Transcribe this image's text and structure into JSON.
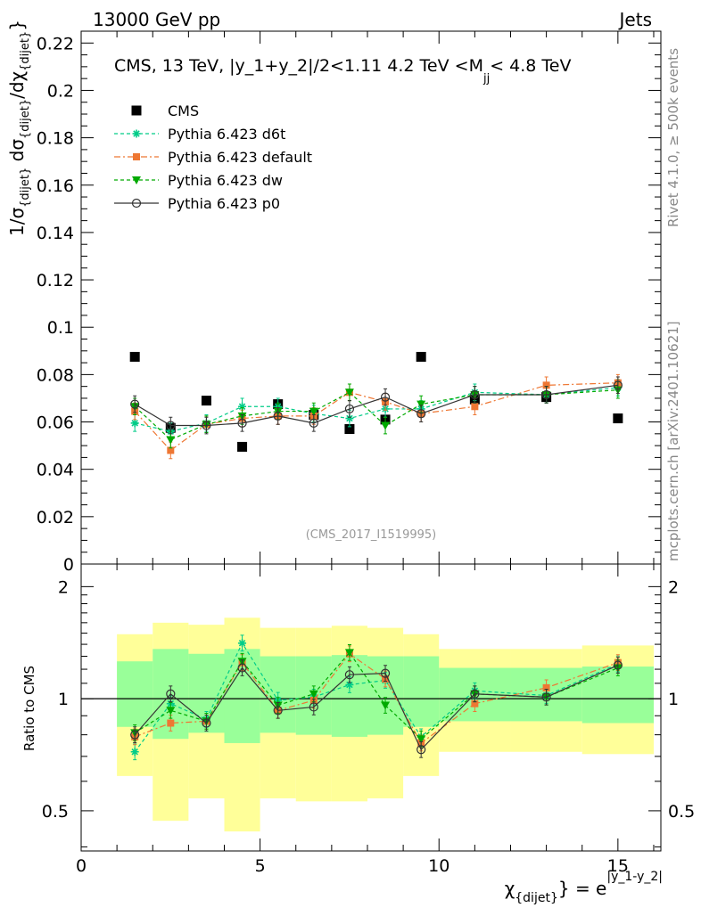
{
  "header": {
    "left": "13000 GeV pp",
    "right": "Jets"
  },
  "side_labels": {
    "rivet": "Rivet 4.1.0, ≥ 500k events",
    "mcplots": "mcplots.cern.ch [arXiv:2401.10621]"
  },
  "chart_data": [
    {
      "type": "scatter",
      "title": "CMS, 13 TeV, |y_1+y_2|/2<1.11 4.2 TeV <M",
      "title_sub": "jj",
      "title_tail": "< 4.8 TeV",
      "watermark": "(CMS_2017_I1519995)",
      "ylabel": "1/σ",
      "ylabel_parts": [
        "1/σ",
        "{dijet}",
        " dσ",
        "{dijet}",
        "/dχ",
        "{dijet}"
      ],
      "xlim": [
        0,
        16.2
      ],
      "ylim": [
        0,
        0.225
      ],
      "yticks": [
        "0",
        "0.02",
        "0.04",
        "0.06",
        "0.08",
        "0.1",
        "0.12",
        "0.14",
        "0.16",
        "0.18",
        "0.2",
        "0.22"
      ],
      "ytick_values": [
        0,
        0.02,
        0.04,
        0.06,
        0.08,
        0.1,
        0.12,
        0.14,
        0.16,
        0.18,
        0.2,
        0.22
      ],
      "x": [
        1.5,
        2.5,
        3.5,
        4.5,
        5.5,
        6.5,
        7.5,
        8.5,
        9.5,
        11.0,
        13.0,
        15.0
      ],
      "series": [
        {
          "name": "CMS",
          "color": "#000000",
          "marker": "square",
          "line": "none",
          "values": [
            0.0875,
            0.0575,
            0.069,
            0.0495,
            0.0675,
            0.063,
            0.057,
            0.061,
            0.0875,
            0.0695,
            0.0705,
            0.0615
          ]
        },
        {
          "name": "Pythia 6.423 d6t",
          "color": "#00cc88",
          "marker": "star",
          "line": "dashed",
          "values": [
            0.0595,
            0.056,
            0.0595,
            0.0665,
            0.0665,
            0.0635,
            0.0615,
            0.0655,
            0.0655,
            0.0725,
            0.0715,
            0.0745
          ]
        },
        {
          "name": "Pythia 6.423 default",
          "color": "#ee7733",
          "marker": "square-small",
          "line": "dashdot",
          "values": [
            0.0645,
            0.048,
            0.059,
            0.0615,
            0.0625,
            0.0625,
            0.0725,
            0.0685,
            0.0635,
            0.0665,
            0.0755,
            0.0765
          ]
        },
        {
          "name": "Pythia 6.423 dw",
          "color": "#00aa00",
          "marker": "triangle-down",
          "line": "dashed",
          "values": [
            0.0665,
            0.0525,
            0.059,
            0.0625,
            0.0645,
            0.0645,
            0.0725,
            0.0585,
            0.0675,
            0.0715,
            0.0715,
            0.0735
          ]
        },
        {
          "name": "Pythia 6.423 p0",
          "color": "#333333",
          "marker": "circle-open",
          "line": "solid",
          "values": [
            0.0675,
            0.0585,
            0.0585,
            0.0595,
            0.0625,
            0.0595,
            0.0655,
            0.0705,
            0.0635,
            0.0715,
            0.0715,
            0.0755
          ]
        }
      ],
      "legend_position": "top-left"
    },
    {
      "type": "scatter",
      "ylabel": "Ratio to CMS",
      "xlabel": "χ",
      "xlabel_sub": "{dijet}",
      "xlabel_tail": "} = e",
      "xlabel_sup": "|y_1-y_2|",
      "xlim": [
        0,
        16.2
      ],
      "ylim": [
        0.39,
        2.3
      ],
      "yscale": "log",
      "xticks": [
        "0",
        "5",
        "10",
        "15"
      ],
      "xtick_values": [
        0,
        5,
        10,
        15
      ],
      "yticks": [
        "0.5",
        "1",
        "2"
      ],
      "ytick_values": [
        0.5,
        1,
        2
      ],
      "x": [
        1.5,
        2.5,
        3.5,
        4.5,
        5.5,
        6.5,
        7.5,
        8.5,
        9.5,
        11.0,
        13.0,
        15.0
      ],
      "bin_edges": [
        1,
        2,
        3,
        4,
        5,
        6,
        7,
        8,
        9,
        10,
        12,
        14,
        16
      ],
      "band_inner": {
        "color": "#99ff99",
        "low": [
          0.84,
          0.78,
          0.81,
          0.76,
          0.81,
          0.8,
          0.79,
          0.8,
          0.84,
          0.87,
          0.87,
          0.86
        ],
        "high": [
          1.26,
          1.36,
          1.32,
          1.36,
          1.3,
          1.3,
          1.31,
          1.3,
          1.3,
          1.21,
          1.21,
          1.22
        ]
      },
      "band_outer": {
        "color": "#ffff99",
        "low": [
          0.62,
          0.47,
          0.54,
          0.44,
          0.54,
          0.53,
          0.53,
          0.54,
          0.62,
          0.72,
          0.72,
          0.71
        ],
        "high": [
          1.49,
          1.6,
          1.58,
          1.65,
          1.55,
          1.55,
          1.57,
          1.55,
          1.49,
          1.36,
          1.36,
          1.39
        ]
      },
      "series": [
        {
          "name": "Pythia 6.423 d6t",
          "color": "#00cc88",
          "marker": "star",
          "line": "dashed",
          "values": [
            0.72,
            0.97,
            0.88,
            1.41,
            0.99,
            1.01,
            1.09,
            1.12,
            0.79,
            1.05,
            1.02,
            1.24
          ]
        },
        {
          "name": "Pythia 6.423 default",
          "color": "#ee7733",
          "marker": "square-small",
          "line": "dashdot",
          "values": [
            0.79,
            0.86,
            0.87,
            1.25,
            0.93,
            0.99,
            1.32,
            1.13,
            0.76,
            0.97,
            1.07,
            1.25
          ]
        },
        {
          "name": "Pythia 6.423 dw",
          "color": "#00aa00",
          "marker": "triangle-down",
          "line": "dashed",
          "values": [
            0.81,
            0.93,
            0.87,
            1.26,
            0.96,
            1.03,
            1.33,
            0.96,
            0.78,
            1.03,
            1.01,
            1.21
          ]
        },
        {
          "name": "Pythia 6.423 p0",
          "color": "#333333",
          "marker": "circle-open",
          "line": "solid",
          "values": [
            0.8,
            1.03,
            0.86,
            1.21,
            0.93,
            0.95,
            1.16,
            1.17,
            0.73,
            1.03,
            1.01,
            1.23
          ]
        }
      ]
    }
  ]
}
